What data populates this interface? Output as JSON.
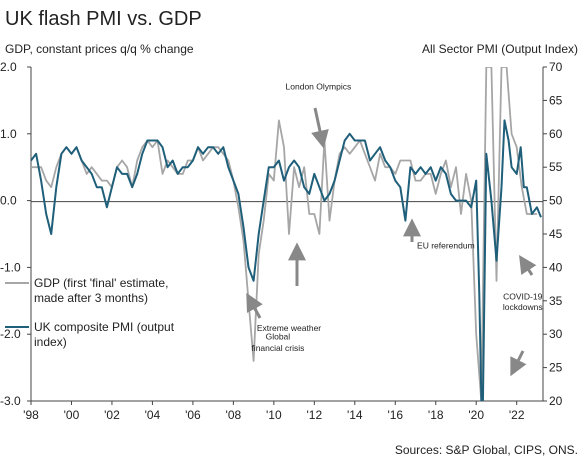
{
  "chart_data": {
    "type": "line",
    "title": "UK flash PMI vs. GDP",
    "ylabel_left": "GDP, constant prices q/q % change",
    "ylabel_right": "All Sector PMI (Output Index)",
    "x_ticks": [
      "'98",
      "'00",
      "'02",
      "'04",
      "'06",
      "'08",
      "'10",
      "'12",
      "'14",
      "'16",
      "'18",
      "'20",
      "'22"
    ],
    "y_left_ticks": [
      "2.0",
      "1.0",
      "0.0",
      "-1.0",
      "-2.0",
      "-3.0"
    ],
    "y_right_ticks": [
      "70",
      "65",
      "60",
      "55",
      "50",
      "45",
      "40",
      "35",
      "30",
      "25",
      "20"
    ],
    "ylim_left": [
      -3.0,
      2.0
    ],
    "ylim_right": [
      20,
      70
    ],
    "xlim": [
      1998,
      2023.3
    ],
    "grid": false,
    "legend_position": "bottom-left",
    "series": [
      {
        "name": "GDP (first 'final' estimate, made after 3 months)",
        "axis": "left",
        "color": "#a6a6a6",
        "points": [
          [
            1998.0,
            0.5
          ],
          [
            1998.5,
            0.5
          ],
          [
            1998.75,
            0.3
          ],
          [
            1999.0,
            0.2
          ],
          [
            1999.25,
            0.5
          ],
          [
            1999.5,
            0.7
          ],
          [
            1999.75,
            0.8
          ],
          [
            2000.0,
            0.7
          ],
          [
            2000.25,
            0.8
          ],
          [
            2000.5,
            0.6
          ],
          [
            2000.75,
            0.4
          ],
          [
            2001.0,
            0.5
          ],
          [
            2001.25,
            0.4
          ],
          [
            2001.5,
            0.3
          ],
          [
            2001.75,
            0.3
          ],
          [
            2002.0,
            0.2
          ],
          [
            2002.25,
            0.5
          ],
          [
            2002.5,
            0.6
          ],
          [
            2002.75,
            0.5
          ],
          [
            2003.0,
            0.2
          ],
          [
            2003.25,
            0.6
          ],
          [
            2003.5,
            0.8
          ],
          [
            2003.75,
            0.9
          ],
          [
            2004.0,
            0.8
          ],
          [
            2004.25,
            0.9
          ],
          [
            2004.5,
            0.4
          ],
          [
            2004.75,
            0.6
          ],
          [
            2005.0,
            0.5
          ],
          [
            2005.25,
            0.4
          ],
          [
            2005.5,
            0.4
          ],
          [
            2005.75,
            0.6
          ],
          [
            2006.0,
            0.6
          ],
          [
            2006.25,
            0.8
          ],
          [
            2006.5,
            0.6
          ],
          [
            2006.75,
            0.7
          ],
          [
            2007.0,
            0.8
          ],
          [
            2007.25,
            0.8
          ],
          [
            2007.5,
            0.7
          ],
          [
            2007.75,
            0.6
          ],
          [
            2008.0,
            0.3
          ],
          [
            2008.25,
            -0.1
          ],
          [
            2008.5,
            -0.6
          ],
          [
            2008.75,
            -1.5
          ],
          [
            2009.0,
            -2.4
          ],
          [
            2009.25,
            -0.8
          ],
          [
            2009.5,
            -0.3
          ],
          [
            2009.75,
            0.4
          ],
          [
            2010.0,
            0.3
          ],
          [
            2010.25,
            1.2
          ],
          [
            2010.5,
            0.8
          ],
          [
            2010.75,
            -0.5
          ],
          [
            2011.0,
            0.5
          ],
          [
            2011.25,
            0.2
          ],
          [
            2011.5,
            0.5
          ],
          [
            2011.75,
            -0.2
          ],
          [
            2012.0,
            -0.2
          ],
          [
            2012.25,
            -0.5
          ],
          [
            2012.5,
            0.9
          ],
          [
            2012.75,
            -0.3
          ],
          [
            2013.0,
            0.3
          ],
          [
            2013.25,
            0.7
          ],
          [
            2013.5,
            0.8
          ],
          [
            2013.75,
            0.7
          ],
          [
            2014.0,
            0.8
          ],
          [
            2014.25,
            0.9
          ],
          [
            2014.5,
            0.7
          ],
          [
            2014.75,
            0.5
          ],
          [
            2015.0,
            0.3
          ],
          [
            2015.25,
            0.7
          ],
          [
            2015.5,
            0.5
          ],
          [
            2015.75,
            0.5
          ],
          [
            2016.0,
            0.4
          ],
          [
            2016.25,
            0.6
          ],
          [
            2016.5,
            0.6
          ],
          [
            2016.75,
            0.6
          ],
          [
            2017.0,
            0.3
          ],
          [
            2017.25,
            0.3
          ],
          [
            2017.5,
            0.4
          ],
          [
            2017.75,
            0.4
          ],
          [
            2018.0,
            0.1
          ],
          [
            2018.25,
            0.4
          ],
          [
            2018.5,
            0.6
          ],
          [
            2018.75,
            0.2
          ],
          [
            2019.0,
            0.5
          ],
          [
            2019.25,
            -0.2
          ],
          [
            2019.5,
            0.4
          ],
          [
            2019.75,
            0.0
          ],
          [
            2020.0,
            -2.0
          ],
          [
            2020.25,
            -3.0
          ],
          [
            2020.5,
            2.0
          ],
          [
            2020.75,
            2.0
          ],
          [
            2021.0,
            -1.2
          ],
          [
            2021.25,
            2.0
          ],
          [
            2021.5,
            2.0
          ],
          [
            2021.75,
            1.0
          ],
          [
            2022.0,
            0.8
          ],
          [
            2022.25,
            0.2
          ],
          [
            2022.5,
            -0.2
          ],
          [
            2022.75,
            -0.2
          ],
          [
            2023.0,
            -0.2
          ]
        ]
      },
      {
        "name": "UK composite PMI (output index)",
        "axis": "right",
        "color": "#1f5f7a",
        "points": [
          [
            1998.0,
            56
          ],
          [
            1998.25,
            57
          ],
          [
            1998.5,
            53
          ],
          [
            1998.75,
            48
          ],
          [
            1999.0,
            45
          ],
          [
            1999.25,
            52
          ],
          [
            1999.5,
            57
          ],
          [
            1999.75,
            58
          ],
          [
            2000.0,
            57
          ],
          [
            2000.25,
            58
          ],
          [
            2000.5,
            56
          ],
          [
            2000.75,
            55
          ],
          [
            2001.0,
            54
          ],
          [
            2001.25,
            52
          ],
          [
            2001.5,
            52
          ],
          [
            2001.75,
            49
          ],
          [
            2002.0,
            52
          ],
          [
            2002.25,
            55
          ],
          [
            2002.5,
            54
          ],
          [
            2002.75,
            54
          ],
          [
            2003.0,
            52
          ],
          [
            2003.25,
            54
          ],
          [
            2003.5,
            57
          ],
          [
            2003.75,
            59
          ],
          [
            2004.0,
            59
          ],
          [
            2004.25,
            59
          ],
          [
            2004.5,
            58
          ],
          [
            2004.75,
            55
          ],
          [
            2005.0,
            56
          ],
          [
            2005.25,
            54
          ],
          [
            2005.5,
            55
          ],
          [
            2005.75,
            55
          ],
          [
            2006.0,
            56
          ],
          [
            2006.25,
            58
          ],
          [
            2006.5,
            57
          ],
          [
            2006.75,
            58
          ],
          [
            2007.0,
            58
          ],
          [
            2007.25,
            57
          ],
          [
            2007.5,
            58
          ],
          [
            2007.75,
            55
          ],
          [
            2008.0,
            53
          ],
          [
            2008.25,
            51
          ],
          [
            2008.5,
            46
          ],
          [
            2008.75,
            40
          ],
          [
            2009.0,
            38
          ],
          [
            2009.25,
            45
          ],
          [
            2009.5,
            50
          ],
          [
            2009.75,
            55
          ],
          [
            2010.0,
            55
          ],
          [
            2010.25,
            56
          ],
          [
            2010.5,
            53
          ],
          [
            2010.75,
            55
          ],
          [
            2011.0,
            56
          ],
          [
            2011.25,
            55
          ],
          [
            2011.5,
            52
          ],
          [
            2011.75,
            51
          ],
          [
            2012.0,
            54
          ],
          [
            2012.25,
            52
          ],
          [
            2012.5,
            50
          ],
          [
            2012.75,
            51
          ],
          [
            2013.0,
            53
          ],
          [
            2013.25,
            56
          ],
          [
            2013.5,
            59
          ],
          [
            2013.75,
            60
          ],
          [
            2014.0,
            59
          ],
          [
            2014.25,
            59
          ],
          [
            2014.5,
            59
          ],
          [
            2014.75,
            56
          ],
          [
            2015.0,
            57
          ],
          [
            2015.25,
            58
          ],
          [
            2015.5,
            56
          ],
          [
            2015.75,
            55
          ],
          [
            2016.0,
            53
          ],
          [
            2016.25,
            52
          ],
          [
            2016.5,
            47
          ],
          [
            2016.75,
            55
          ],
          [
            2017.0,
            54
          ],
          [
            2017.25,
            55
          ],
          [
            2017.5,
            54
          ],
          [
            2017.75,
            55
          ],
          [
            2018.0,
            53
          ],
          [
            2018.25,
            55
          ],
          [
            2018.5,
            54
          ],
          [
            2018.75,
            51
          ],
          [
            2019.0,
            50
          ],
          [
            2019.25,
            50
          ],
          [
            2019.5,
            50
          ],
          [
            2019.75,
            49
          ],
          [
            2020.0,
            53
          ],
          [
            2020.15,
            36
          ],
          [
            2020.3,
            13
          ],
          [
            2020.5,
            57
          ],
          [
            2020.75,
            50
          ],
          [
            2021.0,
            41
          ],
          [
            2021.25,
            52
          ],
          [
            2021.4,
            62
          ],
          [
            2021.6,
            59
          ],
          [
            2021.75,
            55
          ],
          [
            2022.0,
            54
          ],
          [
            2022.2,
            58
          ],
          [
            2022.35,
            52
          ],
          [
            2022.5,
            52
          ],
          [
            2022.75,
            48
          ],
          [
            2023.0,
            49
          ],
          [
            2023.2,
            47.5
          ]
        ]
      }
    ],
    "annotations": [
      {
        "text": "London Olympics",
        "x": 2012.2,
        "y_left": 1.66
      },
      {
        "text": "Extreme weather",
        "x": 2010.75,
        "y_left": -1.95
      },
      {
        "text": "EU referendum",
        "x": 2018.5,
        "y_left": -0.72
      },
      {
        "text": "Global",
        "x": 2010.2,
        "y_left": -2.08
      },
      {
        "text": "financial crisis",
        "x": 2010.2,
        "y_left": -2.25
      },
      {
        "text": "COVID-19",
        "x": 2022.3,
        "y_left": -1.48
      },
      {
        "text": "lockdowns",
        "x": 2022.3,
        "y_left": -1.64
      }
    ],
    "source": "Sources: S&P Global, CIPS, ONS."
  }
}
